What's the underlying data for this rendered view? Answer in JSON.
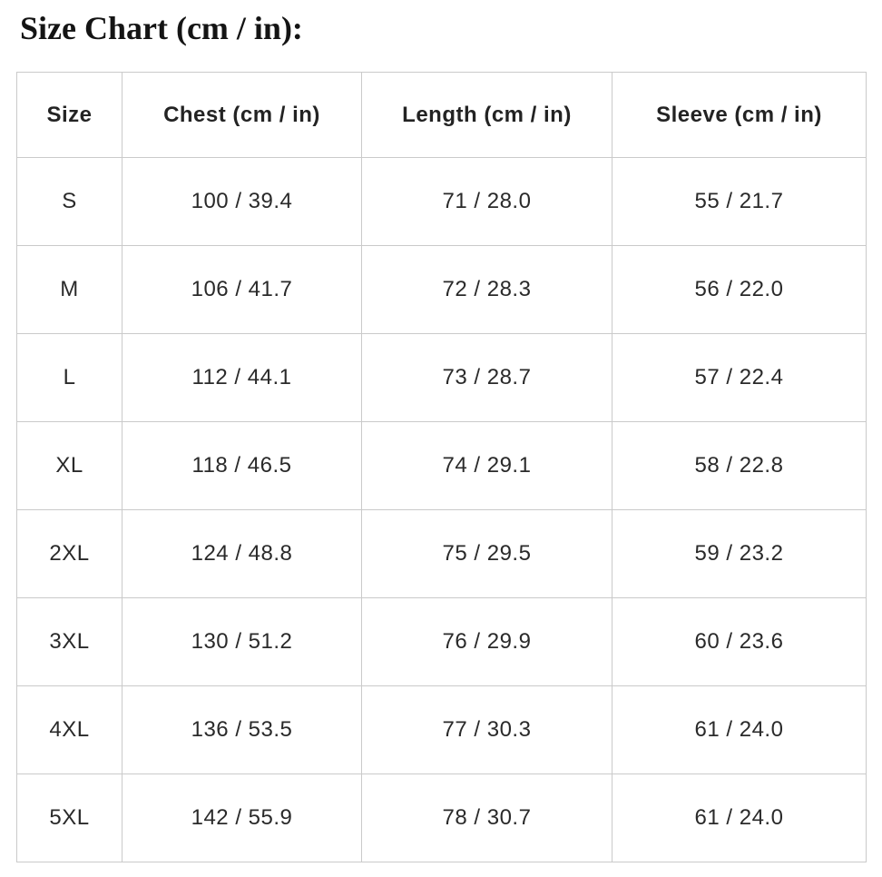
{
  "page": {
    "title": "Size Chart (cm / in):"
  },
  "colors": {
    "background": "#ffffff",
    "table_border": "#cacaca",
    "header_text": "#232323",
    "cell_text": "#2a2a2a",
    "title_text": "#141414"
  },
  "table": {
    "headers": [
      "Size",
      "Chest (cm / in)",
      "Length (cm / in)",
      "Sleeve (cm / in)"
    ],
    "rows": [
      [
        "S",
        "100 / 39.4",
        "71 / 28.0",
        "55 / 21.7"
      ],
      [
        "M",
        "106 / 41.7",
        "72 / 28.3",
        "56 / 22.0"
      ],
      [
        "L",
        "112 / 44.1",
        "73 / 28.7",
        "57 / 22.4"
      ],
      [
        "XL",
        "118 / 46.5",
        "74 / 29.1",
        "58 / 22.8"
      ],
      [
        "2XL",
        "124 / 48.8",
        "75 / 29.5",
        "59 / 23.2"
      ],
      [
        "3XL",
        "130 / 51.2",
        "76 / 29.9",
        "60 / 23.6"
      ],
      [
        "4XL",
        "136 / 53.5",
        "77 / 30.3",
        "61 / 24.0"
      ],
      [
        "5XL",
        "142 / 55.9",
        "78 / 30.7",
        "61 / 24.0"
      ]
    ]
  },
  "chart_data": {
    "type": "table",
    "title": "Size Chart (cm / in):",
    "columns": [
      "Size",
      "Chest (cm / in)",
      "Length (cm / in)",
      "Sleeve (cm / in)"
    ],
    "sizes": [
      "S",
      "M",
      "L",
      "XL",
      "2XL",
      "3XL",
      "4XL",
      "5XL"
    ],
    "chest_cm": [
      100,
      106,
      112,
      118,
      124,
      130,
      136,
      142
    ],
    "chest_in": [
      39.4,
      41.7,
      44.1,
      46.5,
      48.8,
      51.2,
      53.5,
      55.9
    ],
    "length_cm": [
      71,
      72,
      73,
      74,
      75,
      76,
      77,
      78
    ],
    "length_in": [
      28.0,
      28.3,
      28.7,
      29.1,
      29.5,
      29.9,
      30.3,
      30.7
    ],
    "sleeve_cm": [
      55,
      56,
      57,
      58,
      59,
      60,
      61,
      61
    ],
    "sleeve_in": [
      21.7,
      22.0,
      22.4,
      22.8,
      23.2,
      23.6,
      24.0,
      24.0
    ]
  }
}
